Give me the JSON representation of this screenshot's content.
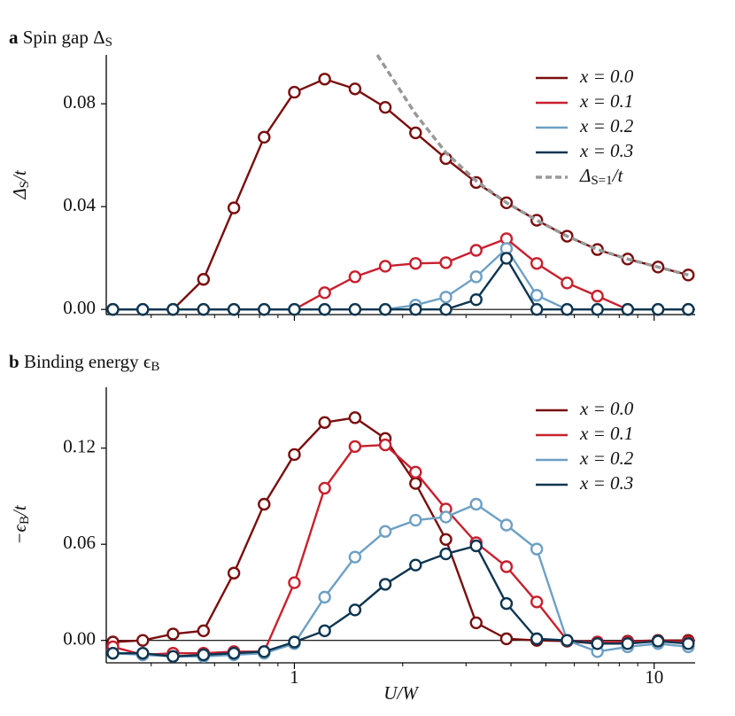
{
  "chart_data": [
    {
      "type": "line",
      "panel": "a",
      "title": "Spin gap Δ_{S}",
      "ylabel": "Δ_{S}/t",
      "xscale": "log",
      "xlim": [
        0.3,
        13
      ],
      "ylim": [
        -0.002,
        0.099
      ],
      "show_xtick_labels": false,
      "xticks": [
        1,
        10
      ],
      "xminorticks": [
        0.4,
        0.5,
        0.6,
        0.7,
        0.8,
        0.9,
        2,
        3,
        4,
        5,
        6,
        7,
        8,
        9
      ],
      "yticks": [
        {
          "value": 0,
          "label": "0.00"
        },
        {
          "value": 0.04,
          "label": "0.04"
        },
        {
          "value": 0.08,
          "label": "0.08"
        }
      ],
      "zero_line": true,
      "legend": "upper right",
      "x": [
        0.313,
        0.379,
        0.46,
        0.559,
        0.679,
        0.824,
        1.0,
        1.214,
        1.474,
        1.789,
        2.172,
        2.637,
        3.201,
        3.886,
        4.718,
        5.728,
        6.954,
        8.44,
        10.25,
        12.44
      ],
      "series": [
        {
          "name": "x = 0.0",
          "color": "#7a0e0e",
          "values": [
            0,
            0,
            0,
            0.0117,
            0.0395,
            0.067,
            0.0845,
            0.0896,
            0.0858,
            0.0786,
            0.0687,
            0.0587,
            0.0494,
            0.0415,
            0.0347,
            0.0285,
            0.0233,
            0.0196,
            0.0165,
            0.0134
          ]
        },
        {
          "name": "x = 0.1",
          "color": "#c8202e",
          "values": [
            0,
            0,
            0,
            0,
            0,
            0,
            0,
            0.0065,
            0.0127,
            0.0168,
            0.0179,
            0.0182,
            0.023,
            0.0275,
            0.0179,
            0.0103,
            0.0052,
            0,
            0,
            0
          ]
        },
        {
          "name": "x = 0.2",
          "color": "#6ea0c4",
          "values": [
            0,
            0,
            0,
            0,
            0,
            0,
            0,
            0,
            0,
            0,
            0.0017,
            0.0048,
            0.0127,
            0.0237,
            0.0055,
            0,
            0,
            0,
            0,
            0
          ]
        },
        {
          "name": "x = 0.3",
          "color": "#0d3550",
          "values": [
            0,
            0,
            0,
            0,
            0,
            0,
            0,
            0,
            0,
            0,
            0,
            0,
            0.0038,
            0.0199,
            0,
            0,
            0,
            0,
            0,
            0
          ]
        },
        {
          "name": "Δ_{S=1}/t",
          "color": "#999999",
          "style": "dashed",
          "markers": false,
          "x": [
            1.7,
            2.172,
            2.637,
            3.201,
            3.886,
            4.718,
            5.728,
            6.954,
            8.44,
            10.25,
            12.44
          ],
          "values": [
            0.099,
            0.076,
            0.061,
            0.05,
            0.0415,
            0.0347,
            0.0285,
            0.0233,
            0.0196,
            0.0165,
            0.0134
          ]
        }
      ]
    },
    {
      "type": "line",
      "panel": "b",
      "title": "Binding energy ϵ_{B}",
      "ylabel": "−ϵ_{B}/t",
      "xlabel": "U/W",
      "xscale": "log",
      "xlim": [
        0.3,
        13
      ],
      "ylim": [
        -0.014,
        0.158
      ],
      "show_xtick_labels": true,
      "xticks": [
        1,
        10
      ],
      "xminorticks": [
        0.4,
        0.5,
        0.6,
        0.7,
        0.8,
        0.9,
        2,
        3,
        4,
        5,
        6,
        7,
        8,
        9
      ],
      "yticks": [
        {
          "value": 0,
          "label": "0.00"
        },
        {
          "value": 0.06,
          "label": "0.06"
        },
        {
          "value": 0.12,
          "label": "0.12"
        }
      ],
      "zero_line": true,
      "legend": "upper right",
      "x": [
        0.313,
        0.379,
        0.46,
        0.559,
        0.679,
        0.824,
        1.0,
        1.214,
        1.474,
        1.789,
        2.172,
        2.637,
        3.201,
        3.886,
        4.718,
        5.728,
        6.954,
        8.44,
        10.25,
        12.44
      ],
      "series": [
        {
          "name": "x = 0.0",
          "color": "#7a0e0e",
          "values": [
            -0.001,
            0,
            0.004,
            0.006,
            0.042,
            0.085,
            0.116,
            0.136,
            0.139,
            0.126,
            0.098,
            0.063,
            0.011,
            0.001,
            0,
            -0.0005,
            -0.002,
            -0.0005,
            0,
            0
          ]
        },
        {
          "name": "x = 0.1",
          "color": "#c8202e",
          "values": [
            -0.004,
            -0.009,
            -0.008,
            -0.008,
            -0.007,
            -0.007,
            0.036,
            0.095,
            0.121,
            0.122,
            0.105,
            0.082,
            0.061,
            0.046,
            0.024,
            0,
            -0.001,
            -0.001,
            -0.0005,
            -0.001
          ]
        },
        {
          "name": "x = 0.2",
          "color": "#6ea0c4",
          "values": [
            -0.008,
            -0.009,
            -0.01,
            -0.01,
            -0.009,
            -0.008,
            -0.002,
            0.027,
            0.052,
            0.068,
            0.075,
            0.077,
            0.085,
            0.072,
            0.057,
            0,
            -0.007,
            -0.004,
            -0.002,
            -0.004
          ]
        },
        {
          "name": "x = 0.3",
          "color": "#0d3550",
          "values": [
            -0.008,
            -0.008,
            -0.01,
            -0.009,
            -0.008,
            -0.007,
            -0.001,
            0.006,
            0.019,
            0.035,
            0.047,
            0.054,
            0.059,
            0.023,
            0.001,
            0,
            -0.002,
            -0.002,
            -0.0005,
            -0.002
          ]
        }
      ]
    }
  ]
}
